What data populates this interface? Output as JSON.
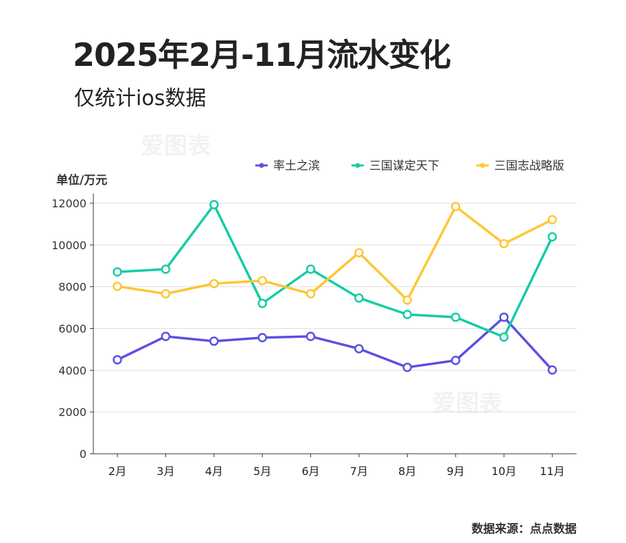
{
  "title": "2025年2月-11月流水变化",
  "subtitle": "仅统计ios数据",
  "source": "数据来源：点点数据",
  "watermark": "爱图表",
  "chart_data": {
    "type": "line",
    "title": "2025年2月-11月流水变化",
    "ylabel": "单位/万元",
    "xlabel": "",
    "categories": [
      "2月",
      "3月",
      "4月",
      "5月",
      "6月",
      "7月",
      "8月",
      "9月",
      "10月",
      "11月"
    ],
    "ylim": [
      0,
      12000
    ],
    "yticks": [
      0,
      2000,
      4000,
      6000,
      8000,
      10000,
      12000
    ],
    "grid": true,
    "legend": "top-right",
    "series": [
      {
        "name": "率土之滨",
        "color": "#5b4fe3",
        "values": [
          4500,
          5620,
          5390,
          5560,
          5620,
          5030,
          4140,
          4470,
          6540,
          4010
        ]
      },
      {
        "name": "三国谋定天下",
        "color": "#14cca4",
        "values": [
          8710,
          8840,
          11930,
          7200,
          8840,
          7460,
          6670,
          6540,
          5590,
          10390
        ]
      },
      {
        "name": "三国志战略版",
        "color": "#ffc533",
        "values": [
          8020,
          7660,
          8150,
          8290,
          7660,
          9630,
          7360,
          11840,
          10060,
          11210
        ]
      }
    ]
  }
}
